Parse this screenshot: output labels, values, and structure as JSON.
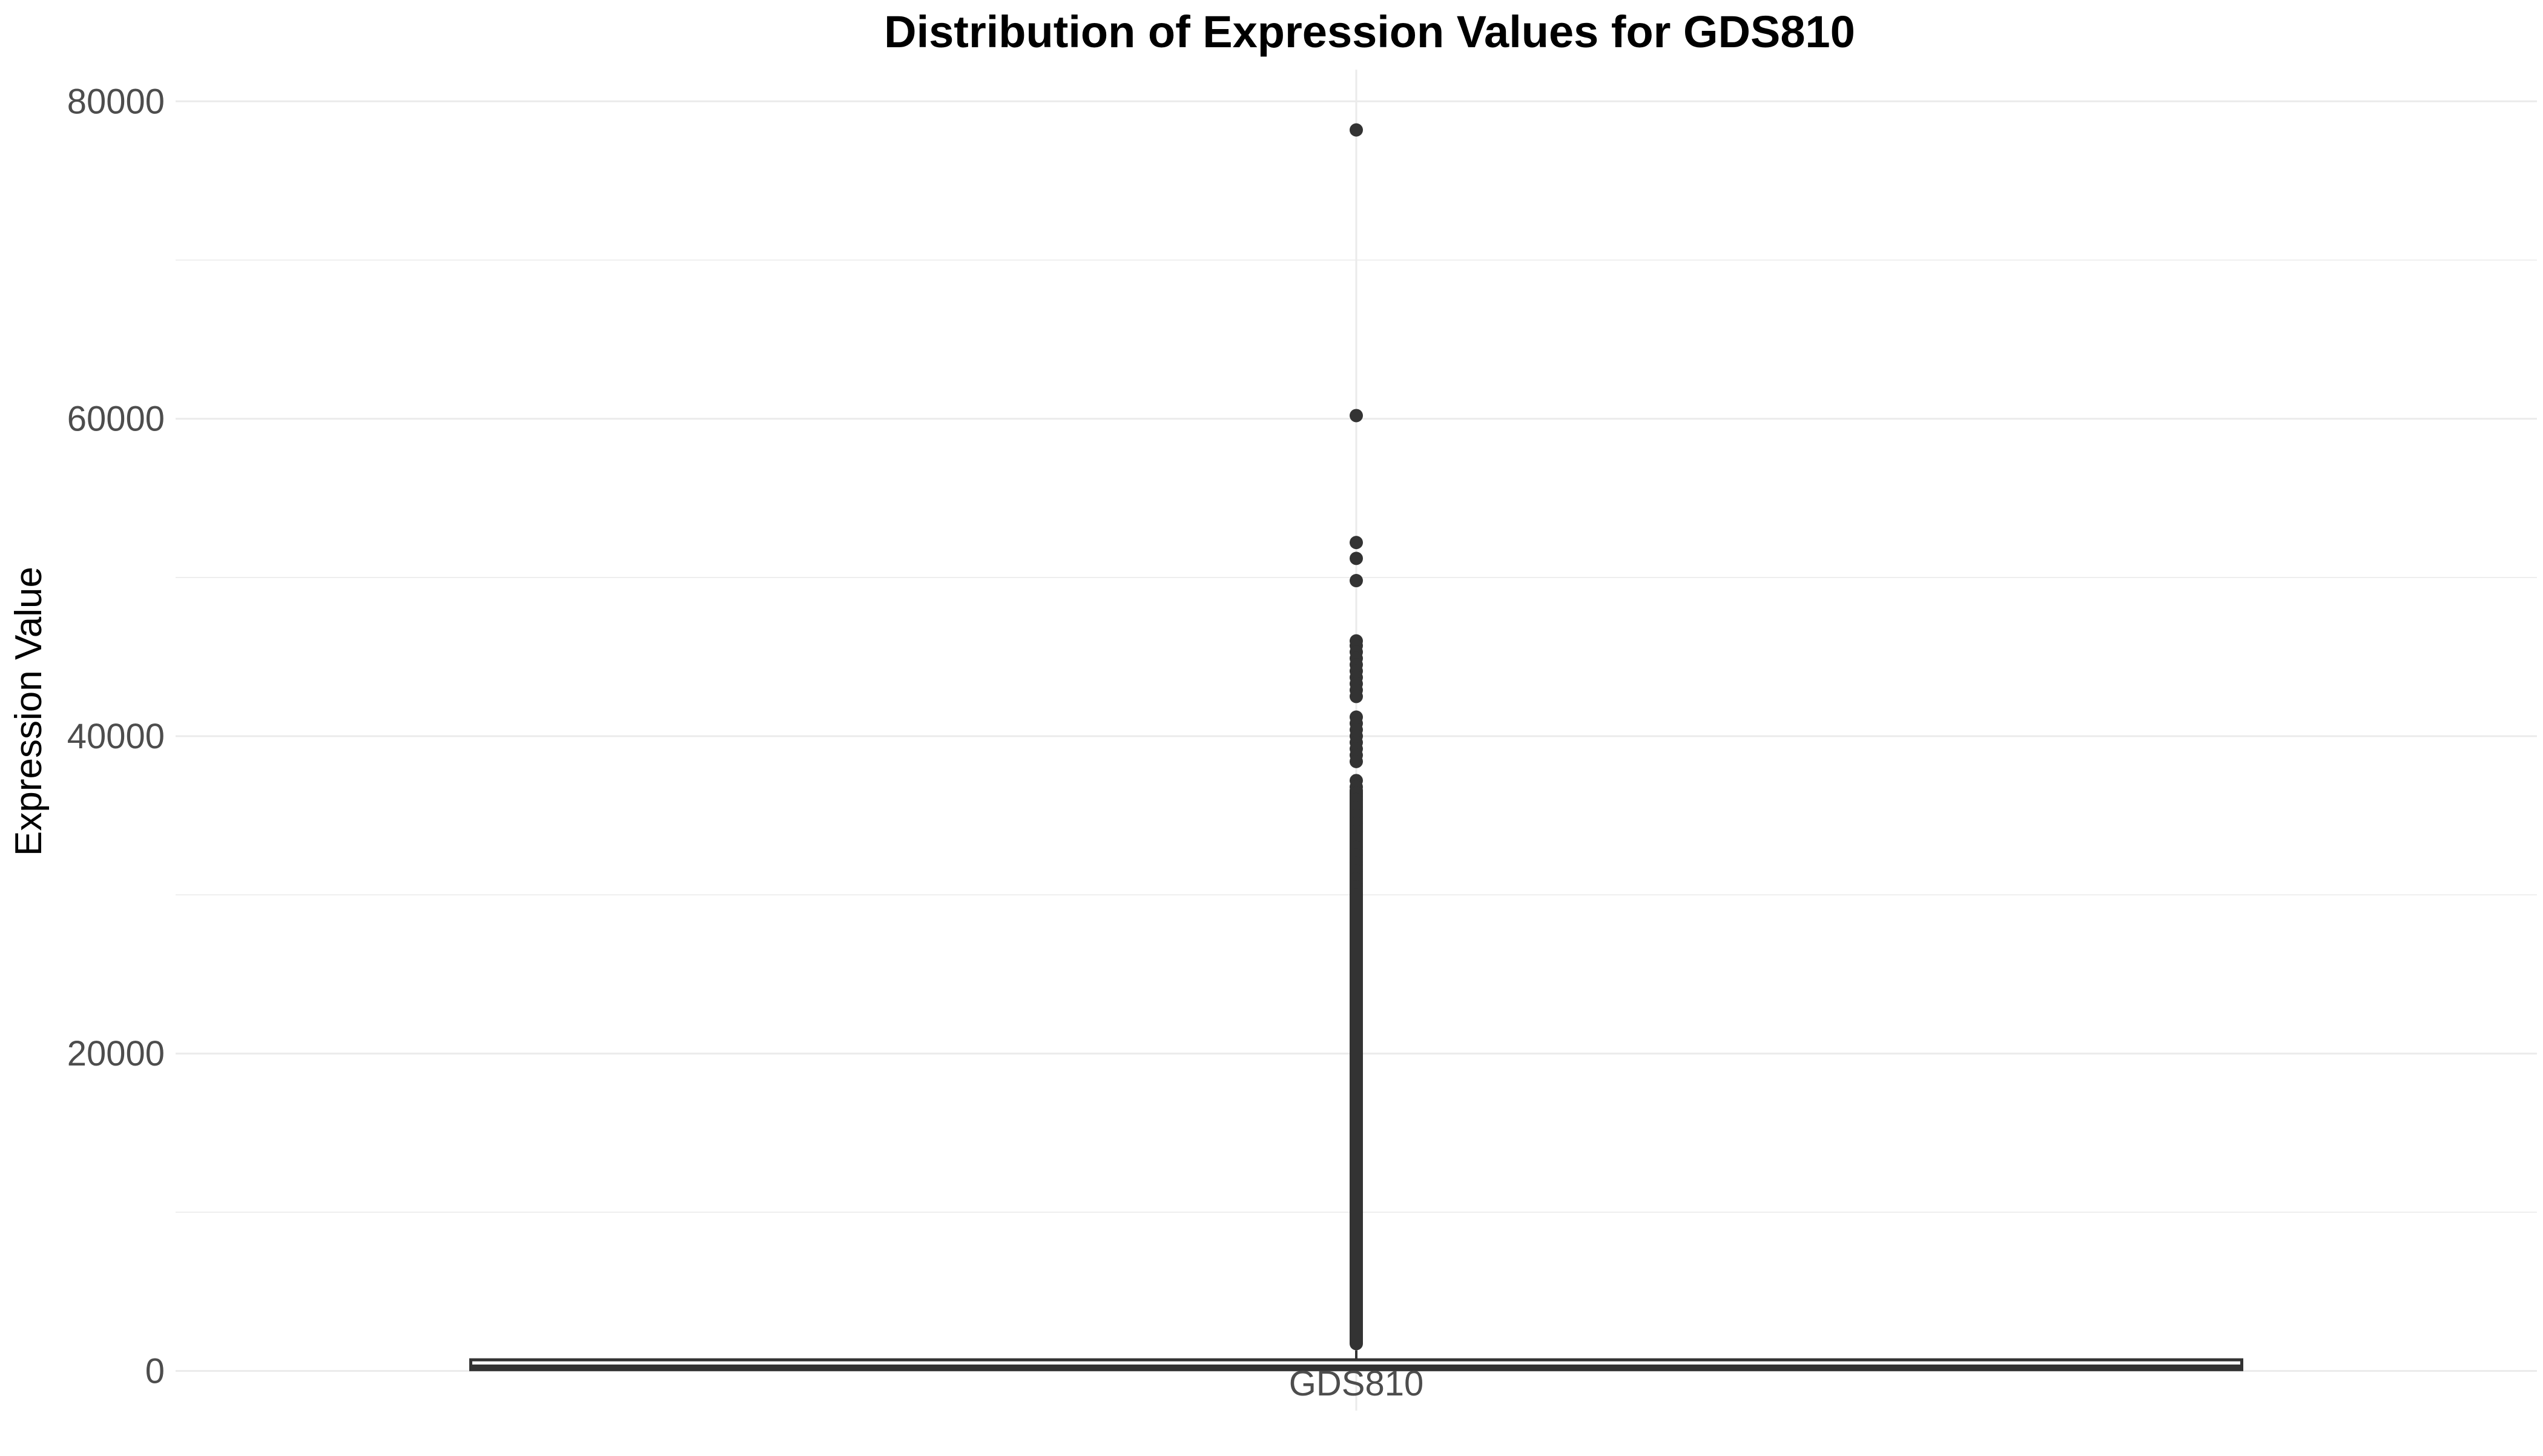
{
  "chart_data": {
    "type": "box",
    "title": "Distribution of Expression Values for GDS810",
    "xlabel": "",
    "ylabel": "Expression Value",
    "categories": [
      "GDS810"
    ],
    "ylim": [
      -2500,
      82000
    ],
    "yticks": [
      0,
      20000,
      40000,
      60000,
      80000
    ],
    "grid": true,
    "legend": "none",
    "colors": {
      "box_fill": "#ffffff",
      "box_stroke": "#333333",
      "outlier": "#333333",
      "grid": "#ebebeb",
      "tick_text": "#4d4d4d"
    },
    "boxes": [
      {
        "category": "GDS810",
        "lower_whisker": 0,
        "q1": 80,
        "median": 250,
        "q3": 700,
        "upper_whisker": 1300,
        "outlier_min": 1300,
        "outlier_dense_max": 37000,
        "outliers": [
          78200,
          60200,
          52200,
          51200,
          49800,
          46000,
          45700,
          45300,
          44900,
          44500,
          44100,
          43700,
          43300,
          42900,
          42500,
          41200,
          40800,
          40400,
          40000,
          39600,
          39200,
          38800,
          38400,
          37200,
          36800,
          36400,
          36000,
          35500,
          35000,
          34500,
          34000,
          33500,
          33000,
          32500,
          32000,
          31500,
          31000,
          30500,
          30000
        ]
      }
    ]
  }
}
